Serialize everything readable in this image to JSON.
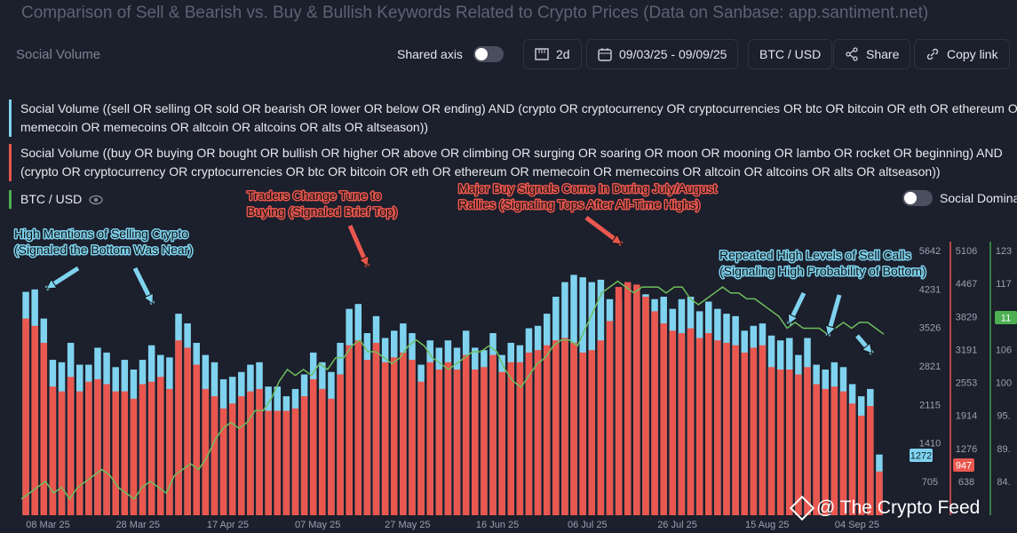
{
  "header": {
    "title": "Comparison of Sell & Bearish vs. Buy & Bullish Keywords Related to Crypto Prices (Data on Sanbase: app.santiment.net)",
    "panel_name": "Social Volume"
  },
  "toolbar": {
    "shared_axis_label": "Shared axis",
    "interval_label": "2d",
    "date_range_label": "09/03/25 - 09/09/25",
    "pair_label": "BTC / USD",
    "share_label": "Share",
    "copy_link_label": "Copy link"
  },
  "legend": {
    "sell_line1": "Social Volume ((sell OR selling OR sold OR bearish OR lower OR below OR ending) AND (crypto OR cryptocurrency OR cryptocurrencies OR btc OR bitcoin OR eth OR ethereum OR",
    "sell_line2": "memecoin OR memecoins OR altcoin OR altcoins OR alts OR altseason))",
    "buy_line1": "Social Volume ((buy OR buying OR bought OR bullish OR higher OR above OR climbing OR surging OR soaring OR moon OR mooning OR lambo OR rocket OR beginning) AND",
    "buy_line2": "(crypto OR cryptocurrency OR cryptocurrencies OR btc OR bitcoin OR eth OR ethereum OR memecoin OR memecoins OR altcoin OR altcoins OR alts OR altseason))",
    "btc_label": "BTC / USD",
    "social_dominance_label": "Social Domina"
  },
  "colors": {
    "sell": "#7fd3ef",
    "buy": "#e9574f",
    "btc": "#6fbf5e",
    "background": "#1c1f2c",
    "annotation_red": "#e9574f",
    "annotation_blue": "#7fd3ef"
  },
  "annotations": [
    {
      "lines": [
        "High Mentions of Selling Crypto",
        "(Signaled the Bottom Was Near)"
      ],
      "color": "blue"
    },
    {
      "lines": [
        "Traders Change Tune to",
        "Buying (Signaled Brief Top)"
      ],
      "color": "red"
    },
    {
      "lines": [
        "Major Buy Signals Come In During July/August",
        "Rallies (Signaling Tops After All-Time Highs)"
      ],
      "color": "red"
    },
    {
      "lines": [
        "Repeated High Levels of Sell Calls",
        "(Signaling High Probability of Bottom)"
      ],
      "color": "blue"
    }
  ],
  "watermark": "@ The Crypto Feed",
  "chart_data": {
    "type": "bar",
    "x_ticks": [
      "08 Mar 25",
      "28 Mar 25",
      "17 Apr 25",
      "07 May 25",
      "27 May 25",
      "16 Jun 25",
      "06 Jul 25",
      "26 Jul 25",
      "15 Aug 25",
      "04 Sep 25"
    ],
    "y_axes": [
      {
        "name": "sell",
        "ticks": [
          "705",
          "1410",
          "2115",
          "2821",
          "3526",
          "4231",
          "5642"
        ],
        "last_value": "1272"
      },
      {
        "name": "buy",
        "ticks": [
          "638",
          "1276",
          "1914",
          "2553",
          "3191",
          "3829",
          "4467",
          "5106"
        ],
        "last_value": "947"
      },
      {
        "name": "btc",
        "ticks": [
          "84.",
          "89.",
          "95.",
          "100",
          "106",
          "111",
          "117",
          "123"
        ],
        "last_value": "11"
      }
    ],
    "series": [
      {
        "name": "Social Volume ((sell OR selling OR sold OR bearish OR lower OR below OR ending) AND (crypto OR cryptocurrency OR cryptocurrencies OR btc OR bitcoin OR eth OR ethereum OR memecoin OR memecoins OR altcoin OR altcoins OR alts OR altseason))",
        "color": "#7fd3ef",
        "values": [
          4600,
          4650,
          4050,
          3200,
          3150,
          3550,
          3100,
          3100,
          3450,
          3350,
          3050,
          3200,
          3000,
          3200,
          3500,
          3300,
          3250,
          4150,
          3950,
          3550,
          3300,
          3150,
          2800,
          2850,
          2950,
          3100,
          3150,
          2650,
          2650,
          2450,
          2600,
          2900,
          3350,
          3150,
          2950,
          3550,
          4250,
          4350,
          3750,
          4100,
          3650,
          3800,
          3950,
          3750,
          3100,
          3600,
          3450,
          3600,
          3450,
          3800,
          3450,
          3400,
          3750,
          3300,
          3550,
          3500,
          3850,
          3900,
          4150,
          4500,
          4800,
          4950,
          4900,
          4800,
          4850,
          4450,
          4400,
          4300,
          4500,
          4550,
          4450,
          4500,
          4250,
          4450,
          4500,
          4200,
          4400,
          4250,
          4150,
          4100,
          3800,
          3900,
          3950,
          3700,
          3600,
          3650,
          3300,
          3650,
          3100,
          3000,
          3150,
          3050,
          2700,
          2450,
          2600,
          1250
        ]
      },
      {
        "name": "Social Volume ((buy OR buying OR bought OR bullish OR higher OR above OR climbing OR surging OR soaring OR moon OR mooning OR lambo OR rocket OR beginning) AND (crypto OR cryptocurrency OR cryptocurrencies OR btc OR bitcoin OR eth OR ethereum OR memecoin OR memecoins OR altcoin OR altcoins OR alts OR altseason))",
        "color": "#e9574f",
        "values": [
          4050,
          3900,
          3550,
          2650,
          2550,
          2850,
          2550,
          2750,
          2800,
          2700,
          2550,
          2550,
          2400,
          2700,
          2750,
          2850,
          2600,
          3600,
          3450,
          3100,
          2600,
          2450,
          2200,
          2300,
          2450,
          2550,
          2600,
          2150,
          2150,
          2150,
          2200,
          2450,
          2800,
          2600,
          2400,
          2900,
          3500,
          3600,
          3200,
          3550,
          3150,
          3250,
          3350,
          3200,
          2750,
          3150,
          3000,
          3150,
          3000,
          3300,
          3000,
          3050,
          3300,
          2950,
          3150,
          3150,
          3350,
          3400,
          3500,
          3600,
          3650,
          3550,
          3350,
          3400,
          3600,
          4000,
          4700,
          4800,
          4750,
          4500,
          4200,
          3950,
          3800,
          3750,
          3850,
          3650,
          3750,
          3600,
          3550,
          3500,
          3350,
          3450,
          3500,
          3050,
          3000,
          3000,
          2900,
          3050,
          2700,
          2600,
          2650,
          2550,
          2300,
          2050,
          2250,
          900
        ]
      },
      {
        "name": "BTC / USD",
        "color": "#6fbf5e",
        "values": [
          82,
          83,
          84,
          85,
          83,
          84,
          82,
          84,
          85,
          86,
          87,
          86,
          84,
          83,
          82,
          84,
          85,
          84,
          83,
          86,
          87,
          88,
          87,
          89,
          92,
          94,
          95,
          94,
          95,
          97,
          97,
          99,
          102,
          104,
          103,
          104,
          103,
          105,
          104,
          106,
          106,
          108,
          109,
          107,
          107,
          106,
          105,
          106,
          108,
          109,
          108,
          106,
          105,
          104,
          105,
          106,
          107,
          107,
          108,
          107,
          104,
          102,
          101,
          103,
          105,
          106,
          108,
          109,
          109,
          108,
          111,
          114,
          117,
          118,
          119,
          118,
          117,
          118,
          118,
          118,
          117,
          118,
          118,
          116,
          115,
          116,
          117,
          118,
          117,
          117,
          116,
          116,
          115,
          114,
          113,
          111,
          112,
          111,
          111,
          111,
          110,
          111,
          112,
          111,
          112,
          112,
          111,
          110
        ]
      }
    ]
  }
}
